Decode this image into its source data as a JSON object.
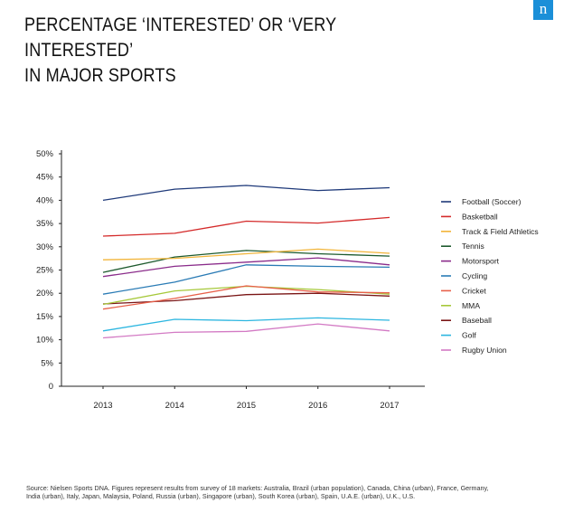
{
  "title": {
    "line1": "PERCENTAGE ‘INTERESTED’ OR ‘VERY INTERESTED’",
    "line2": "IN MAJOR SPORTS"
  },
  "logo": {
    "glyph": "n",
    "color": "#1b8fd8"
  },
  "source_note": "Source: Nielsen Sports DNA. Figures represent results from survey of 18 markets: Australia, Brazil (urban population), Canada, China (urban), France, Germany, India (urban), Italy, Japan, Malaysia, Poland, Russia (urban), Singapore (urban), South Korea (urban), Spain, U.A.E. (urban), U.K., U.S.",
  "chart_data": {
    "type": "line",
    "title": "",
    "xlabel": "",
    "ylabel": "",
    "x": [
      2013,
      2014,
      2015,
      2016,
      2017
    ],
    "x_tick_labels": [
      "2013",
      "2014",
      "2015",
      "2016",
      "2017"
    ],
    "ylim": [
      0,
      50
    ],
    "y_ticks": [
      0,
      5,
      10,
      15,
      20,
      25,
      30,
      35,
      40,
      45,
      50
    ],
    "y_tick_labels": [
      "0",
      "5%",
      "10%",
      "15%",
      "20%",
      "25%",
      "30%",
      "35%",
      "40%",
      "45%",
      "50%"
    ],
    "grid": false,
    "legend_position": "right",
    "series": [
      {
        "name": "Football (Soccer)",
        "color": "#1f3a7a",
        "values": [
          40.0,
          42.4,
          43.2,
          42.1,
          42.7
        ]
      },
      {
        "name": "Basketball",
        "color": "#d42a2a",
        "values": [
          32.3,
          32.9,
          35.5,
          35.1,
          36.3
        ]
      },
      {
        "name": "Track & Field Athletics",
        "color": "#f2b53a",
        "values": [
          27.2,
          27.5,
          28.5,
          29.5,
          28.6
        ]
      },
      {
        "name": "Tennis",
        "color": "#1d5a2e",
        "values": [
          24.5,
          27.8,
          29.2,
          28.5,
          28.0
        ]
      },
      {
        "name": "Motorsport",
        "color": "#8a2b8a",
        "values": [
          23.6,
          25.8,
          26.7,
          27.6,
          26.1
        ]
      },
      {
        "name": "Cycling",
        "color": "#2a7bb5",
        "values": [
          19.8,
          22.4,
          26.1,
          25.8,
          25.6
        ]
      },
      {
        "name": "Cricket",
        "color": "#e8604a",
        "values": [
          16.6,
          18.9,
          21.6,
          20.3,
          20.1
        ]
      },
      {
        "name": "MMA",
        "color": "#a6c83a",
        "values": [
          17.6,
          20.5,
          21.5,
          20.8,
          19.8
        ]
      },
      {
        "name": "Baseball",
        "color": "#7a1515",
        "values": [
          17.7,
          18.4,
          19.7,
          20.0,
          19.4
        ]
      },
      {
        "name": "Golf",
        "color": "#2cb6e0",
        "values": [
          11.9,
          14.4,
          14.1,
          14.7,
          14.2
        ]
      },
      {
        "name": "Rugby Union",
        "color": "#d37ac4",
        "values": [
          10.4,
          11.6,
          11.8,
          13.4,
          11.9
        ]
      }
    ]
  }
}
